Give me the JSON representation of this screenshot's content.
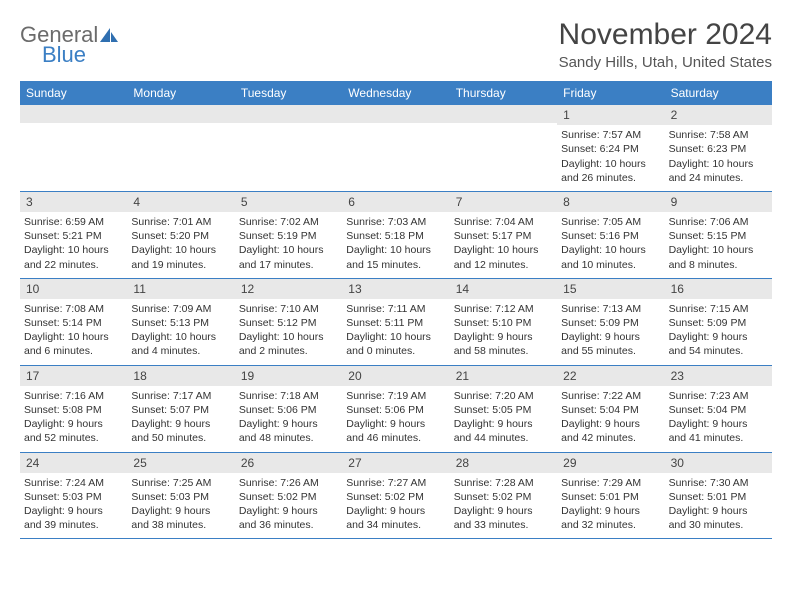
{
  "logo": {
    "text_gray": "General",
    "text_blue": "Blue"
  },
  "title": "November 2024",
  "location": "Sandy Hills, Utah, United States",
  "day_headers": [
    "Sunday",
    "Monday",
    "Tuesday",
    "Wednesday",
    "Thursday",
    "Friday",
    "Saturday"
  ],
  "colors": {
    "header_bg": "#3b7fc4",
    "header_text": "#ffffff",
    "daynum_bg": "#e8e8e8",
    "rule": "#3b7fc4",
    "body_text": "#333333"
  },
  "typography": {
    "title_fontsize": 30,
    "location_fontsize": 15,
    "dayheader_fontsize": 12,
    "cell_fontsize": 10.5
  },
  "weeks": [
    [
      {
        "n": "",
        "sunrise": "",
        "sunset": "",
        "day1": "",
        "day2": ""
      },
      {
        "n": "",
        "sunrise": "",
        "sunset": "",
        "day1": "",
        "day2": ""
      },
      {
        "n": "",
        "sunrise": "",
        "sunset": "",
        "day1": "",
        "day2": ""
      },
      {
        "n": "",
        "sunrise": "",
        "sunset": "",
        "day1": "",
        "day2": ""
      },
      {
        "n": "",
        "sunrise": "",
        "sunset": "",
        "day1": "",
        "day2": ""
      },
      {
        "n": "1",
        "sunrise": "Sunrise: 7:57 AM",
        "sunset": "Sunset: 6:24 PM",
        "day1": "Daylight: 10 hours",
        "day2": "and 26 minutes."
      },
      {
        "n": "2",
        "sunrise": "Sunrise: 7:58 AM",
        "sunset": "Sunset: 6:23 PM",
        "day1": "Daylight: 10 hours",
        "day2": "and 24 minutes."
      }
    ],
    [
      {
        "n": "3",
        "sunrise": "Sunrise: 6:59 AM",
        "sunset": "Sunset: 5:21 PM",
        "day1": "Daylight: 10 hours",
        "day2": "and 22 minutes."
      },
      {
        "n": "4",
        "sunrise": "Sunrise: 7:01 AM",
        "sunset": "Sunset: 5:20 PM",
        "day1": "Daylight: 10 hours",
        "day2": "and 19 minutes."
      },
      {
        "n": "5",
        "sunrise": "Sunrise: 7:02 AM",
        "sunset": "Sunset: 5:19 PM",
        "day1": "Daylight: 10 hours",
        "day2": "and 17 minutes."
      },
      {
        "n": "6",
        "sunrise": "Sunrise: 7:03 AM",
        "sunset": "Sunset: 5:18 PM",
        "day1": "Daylight: 10 hours",
        "day2": "and 15 minutes."
      },
      {
        "n": "7",
        "sunrise": "Sunrise: 7:04 AM",
        "sunset": "Sunset: 5:17 PM",
        "day1": "Daylight: 10 hours",
        "day2": "and 12 minutes."
      },
      {
        "n": "8",
        "sunrise": "Sunrise: 7:05 AM",
        "sunset": "Sunset: 5:16 PM",
        "day1": "Daylight: 10 hours",
        "day2": "and 10 minutes."
      },
      {
        "n": "9",
        "sunrise": "Sunrise: 7:06 AM",
        "sunset": "Sunset: 5:15 PM",
        "day1": "Daylight: 10 hours",
        "day2": "and 8 minutes."
      }
    ],
    [
      {
        "n": "10",
        "sunrise": "Sunrise: 7:08 AM",
        "sunset": "Sunset: 5:14 PM",
        "day1": "Daylight: 10 hours",
        "day2": "and 6 minutes."
      },
      {
        "n": "11",
        "sunrise": "Sunrise: 7:09 AM",
        "sunset": "Sunset: 5:13 PM",
        "day1": "Daylight: 10 hours",
        "day2": "and 4 minutes."
      },
      {
        "n": "12",
        "sunrise": "Sunrise: 7:10 AM",
        "sunset": "Sunset: 5:12 PM",
        "day1": "Daylight: 10 hours",
        "day2": "and 2 minutes."
      },
      {
        "n": "13",
        "sunrise": "Sunrise: 7:11 AM",
        "sunset": "Sunset: 5:11 PM",
        "day1": "Daylight: 10 hours",
        "day2": "and 0 minutes."
      },
      {
        "n": "14",
        "sunrise": "Sunrise: 7:12 AM",
        "sunset": "Sunset: 5:10 PM",
        "day1": "Daylight: 9 hours",
        "day2": "and 58 minutes."
      },
      {
        "n": "15",
        "sunrise": "Sunrise: 7:13 AM",
        "sunset": "Sunset: 5:09 PM",
        "day1": "Daylight: 9 hours",
        "day2": "and 55 minutes."
      },
      {
        "n": "16",
        "sunrise": "Sunrise: 7:15 AM",
        "sunset": "Sunset: 5:09 PM",
        "day1": "Daylight: 9 hours",
        "day2": "and 54 minutes."
      }
    ],
    [
      {
        "n": "17",
        "sunrise": "Sunrise: 7:16 AM",
        "sunset": "Sunset: 5:08 PM",
        "day1": "Daylight: 9 hours",
        "day2": "and 52 minutes."
      },
      {
        "n": "18",
        "sunrise": "Sunrise: 7:17 AM",
        "sunset": "Sunset: 5:07 PM",
        "day1": "Daylight: 9 hours",
        "day2": "and 50 minutes."
      },
      {
        "n": "19",
        "sunrise": "Sunrise: 7:18 AM",
        "sunset": "Sunset: 5:06 PM",
        "day1": "Daylight: 9 hours",
        "day2": "and 48 minutes."
      },
      {
        "n": "20",
        "sunrise": "Sunrise: 7:19 AM",
        "sunset": "Sunset: 5:06 PM",
        "day1": "Daylight: 9 hours",
        "day2": "and 46 minutes."
      },
      {
        "n": "21",
        "sunrise": "Sunrise: 7:20 AM",
        "sunset": "Sunset: 5:05 PM",
        "day1": "Daylight: 9 hours",
        "day2": "and 44 minutes."
      },
      {
        "n": "22",
        "sunrise": "Sunrise: 7:22 AM",
        "sunset": "Sunset: 5:04 PM",
        "day1": "Daylight: 9 hours",
        "day2": "and 42 minutes."
      },
      {
        "n": "23",
        "sunrise": "Sunrise: 7:23 AM",
        "sunset": "Sunset: 5:04 PM",
        "day1": "Daylight: 9 hours",
        "day2": "and 41 minutes."
      }
    ],
    [
      {
        "n": "24",
        "sunrise": "Sunrise: 7:24 AM",
        "sunset": "Sunset: 5:03 PM",
        "day1": "Daylight: 9 hours",
        "day2": "and 39 minutes."
      },
      {
        "n": "25",
        "sunrise": "Sunrise: 7:25 AM",
        "sunset": "Sunset: 5:03 PM",
        "day1": "Daylight: 9 hours",
        "day2": "and 38 minutes."
      },
      {
        "n": "26",
        "sunrise": "Sunrise: 7:26 AM",
        "sunset": "Sunset: 5:02 PM",
        "day1": "Daylight: 9 hours",
        "day2": "and 36 minutes."
      },
      {
        "n": "27",
        "sunrise": "Sunrise: 7:27 AM",
        "sunset": "Sunset: 5:02 PM",
        "day1": "Daylight: 9 hours",
        "day2": "and 34 minutes."
      },
      {
        "n": "28",
        "sunrise": "Sunrise: 7:28 AM",
        "sunset": "Sunset: 5:02 PM",
        "day1": "Daylight: 9 hours",
        "day2": "and 33 minutes."
      },
      {
        "n": "29",
        "sunrise": "Sunrise: 7:29 AM",
        "sunset": "Sunset: 5:01 PM",
        "day1": "Daylight: 9 hours",
        "day2": "and 32 minutes."
      },
      {
        "n": "30",
        "sunrise": "Sunrise: 7:30 AM",
        "sunset": "Sunset: 5:01 PM",
        "day1": "Daylight: 9 hours",
        "day2": "and 30 minutes."
      }
    ]
  ]
}
